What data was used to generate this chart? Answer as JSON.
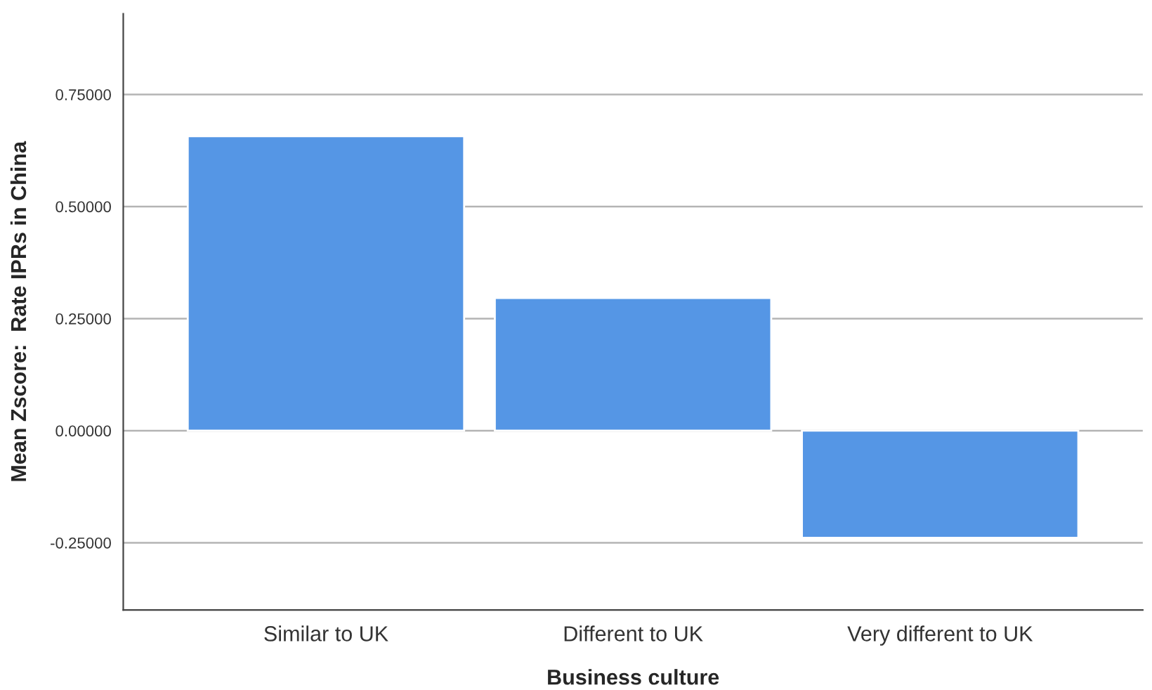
{
  "chart_data": {
    "type": "bar",
    "xlabel": "Business culture",
    "ylabel": "Mean Zscore:  Rate IPRs in China",
    "categories": [
      "Similar to UK",
      "Different to UK",
      "Very different to UK"
    ],
    "values": [
      0.657,
      0.296,
      -0.239
    ],
    "color": "#5596e5",
    "ylim": [
      -0.4,
      0.93
    ],
    "yticks": [
      {
        "value": -0.25,
        "label": "-0.25000"
      },
      {
        "value": 0,
        "label": "0.00000"
      },
      {
        "value": 0.25,
        "label": "0.25000"
      },
      {
        "value": 0.5,
        "label": "0.50000"
      },
      {
        "value": 0.75,
        "label": "0.75000"
      }
    ],
    "grid": "y"
  }
}
